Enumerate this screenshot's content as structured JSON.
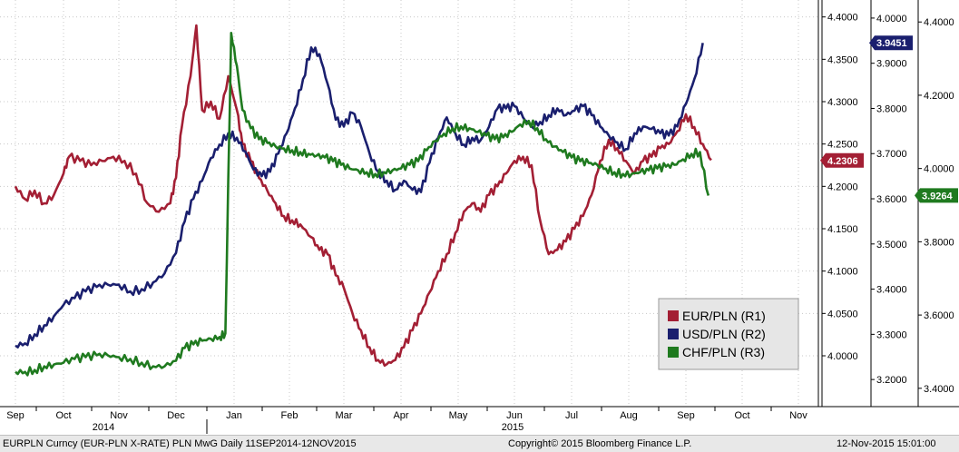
{
  "footer": {
    "left": "EURPLN Curncy (EUR-PLN X-RATE) PLN MwG  Daily 11SEP2014-12NOV2015",
    "center": "Copyright© 2015 Bloomberg Finance L.P.",
    "right": "12-Nov-2015 15:01:00"
  },
  "colors": {
    "eur": "#a31f34",
    "usd": "#1a1f6e",
    "chf": "#1f7a1f",
    "grid": "#c8c8c8",
    "legend_bg": "#e6e6e6"
  },
  "chart_data": {
    "type": "line",
    "x_months": [
      "Sep",
      "Oct",
      "Nov",
      "Dec",
      "Jan",
      "Feb",
      "Mar",
      "Apr",
      "May",
      "Jun",
      "Jul",
      "Aug",
      "Sep",
      "Oct",
      "Nov"
    ],
    "x_years": [
      "2014",
      "2015"
    ],
    "axes": {
      "R1": {
        "min": 3.94,
        "max": 4.42,
        "ticks": [
          "4.0000",
          "4.0500",
          "4.1000",
          "4.1500",
          "4.2000",
          "4.2500",
          "4.3000",
          "4.3500",
          "4.4000"
        ]
      },
      "R2": {
        "min": 3.14,
        "max": 4.04,
        "ticks": [
          "3.2000",
          "3.3000",
          "3.4000",
          "3.5000",
          "3.6000",
          "3.7000",
          "3.8000",
          "3.9000",
          "4.0000"
        ]
      },
      "R3": {
        "min": 3.35,
        "max": 4.46,
        "ticks": [
          "3.4000",
          "3.6000",
          "3.8000",
          "4.0000",
          "4.2000",
          "4.4000"
        ]
      }
    },
    "last_values": {
      "EUR": "4.2306",
      "USD": "3.9451",
      "CHF": "3.9264"
    },
    "legend": [
      "EUR/PLN (R1)",
      "USD/PLN (R2)",
      "CHF/PLN (R3)"
    ],
    "legend_position": "bottom-right",
    "series": [
      {
        "name": "EUR/PLN (R1)",
        "axis": "R1",
        "points": [
          [
            0,
            4.2
          ],
          [
            0.2,
            4.185
          ],
          [
            0.4,
            4.195
          ],
          [
            0.6,
            4.18
          ],
          [
            0.8,
            4.19
          ],
          [
            1.0,
            4.215
          ],
          [
            1.1,
            4.235
          ],
          [
            1.3,
            4.23
          ],
          [
            1.5,
            4.225
          ],
          [
            1.7,
            4.23
          ],
          [
            1.9,
            4.235
          ],
          [
            2.1,
            4.23
          ],
          [
            2.3,
            4.215
          ],
          [
            2.5,
            4.18
          ],
          [
            2.7,
            4.17
          ],
          [
            2.9,
            4.18
          ],
          [
            3.0,
            4.21
          ],
          [
            3.1,
            4.27
          ],
          [
            3.25,
            4.33
          ],
          [
            3.35,
            4.39
          ],
          [
            3.45,
            4.29
          ],
          [
            3.6,
            4.3
          ],
          [
            3.75,
            4.28
          ],
          [
            3.9,
            4.33
          ],
          [
            4.05,
            4.29
          ],
          [
            4.15,
            4.25
          ],
          [
            4.3,
            4.23
          ],
          [
            4.45,
            4.21
          ],
          [
            4.6,
            4.195
          ],
          [
            4.75,
            4.18
          ],
          [
            4.9,
            4.165
          ],
          [
            5.05,
            4.16
          ],
          [
            5.2,
            4.155
          ],
          [
            5.4,
            4.14
          ],
          [
            5.55,
            4.125
          ],
          [
            5.7,
            4.12
          ],
          [
            5.85,
            4.095
          ],
          [
            6.0,
            4.08
          ],
          [
            6.15,
            4.05
          ],
          [
            6.3,
            4.03
          ],
          [
            6.45,
            4.01
          ],
          [
            6.6,
            3.995
          ],
          [
            6.75,
            3.99
          ],
          [
            6.9,
            3.995
          ],
          [
            7.05,
            4.01
          ],
          [
            7.2,
            4.03
          ],
          [
            7.35,
            4.05
          ],
          [
            7.5,
            4.075
          ],
          [
            7.65,
            4.1
          ],
          [
            7.8,
            4.12
          ],
          [
            7.95,
            4.145
          ],
          [
            8.1,
            4.17
          ],
          [
            8.25,
            4.18
          ],
          [
            8.4,
            4.17
          ],
          [
            8.55,
            4.19
          ],
          [
            8.7,
            4.2
          ],
          [
            8.85,
            4.215
          ],
          [
            9.0,
            4.23
          ],
          [
            9.15,
            4.235
          ],
          [
            9.3,
            4.225
          ],
          [
            9.45,
            4.16
          ],
          [
            9.6,
            4.12
          ],
          [
            9.75,
            4.125
          ],
          [
            9.9,
            4.135
          ],
          [
            10.05,
            4.15
          ],
          [
            10.2,
            4.165
          ],
          [
            10.35,
            4.19
          ],
          [
            10.5,
            4.23
          ],
          [
            10.65,
            4.255
          ],
          [
            10.8,
            4.245
          ],
          [
            10.95,
            4.23
          ],
          [
            11.1,
            4.215
          ],
          [
            11.25,
            4.23
          ],
          [
            11.4,
            4.235
          ],
          [
            11.55,
            4.245
          ],
          [
            11.7,
            4.25
          ],
          [
            11.85,
            4.265
          ],
          [
            12.0,
            4.285
          ],
          [
            12.15,
            4.27
          ],
          [
            12.3,
            4.25
          ],
          [
            12.45,
            4.231
          ]
        ]
      },
      {
        "name": "USD/PLN (R2)",
        "axis": "R2",
        "points": [
          [
            0,
            3.275
          ],
          [
            0.2,
            3.28
          ],
          [
            0.4,
            3.3
          ],
          [
            0.6,
            3.32
          ],
          [
            0.8,
            3.34
          ],
          [
            1.0,
            3.365
          ],
          [
            1.2,
            3.38
          ],
          [
            1.4,
            3.395
          ],
          [
            1.6,
            3.405
          ],
          [
            1.8,
            3.41
          ],
          [
            2.0,
            3.41
          ],
          [
            2.2,
            3.395
          ],
          [
            2.4,
            3.4
          ],
          [
            2.6,
            3.415
          ],
          [
            2.8,
            3.435
          ],
          [
            3.0,
            3.48
          ],
          [
            3.15,
            3.55
          ],
          [
            3.3,
            3.6
          ],
          [
            3.45,
            3.64
          ],
          [
            3.6,
            3.69
          ],
          [
            3.75,
            3.72
          ],
          [
            3.9,
            3.745
          ],
          [
            4.05,
            3.735
          ],
          [
            4.2,
            3.705
          ],
          [
            4.35,
            3.665
          ],
          [
            4.5,
            3.65
          ],
          [
            4.65,
            3.66
          ],
          [
            4.8,
            3.7
          ],
          [
            4.95,
            3.745
          ],
          [
            5.1,
            3.8
          ],
          [
            5.25,
            3.865
          ],
          [
            5.4,
            3.935
          ],
          [
            5.55,
            3.92
          ],
          [
            5.7,
            3.855
          ],
          [
            5.85,
            3.775
          ],
          [
            6.0,
            3.76
          ],
          [
            6.15,
            3.79
          ],
          [
            6.3,
            3.76
          ],
          [
            6.45,
            3.7
          ],
          [
            6.6,
            3.66
          ],
          [
            6.75,
            3.64
          ],
          [
            6.9,
            3.62
          ],
          [
            7.05,
            3.64
          ],
          [
            7.2,
            3.62
          ],
          [
            7.35,
            3.615
          ],
          [
            7.5,
            3.68
          ],
          [
            7.65,
            3.735
          ],
          [
            7.8,
            3.78
          ],
          [
            7.95,
            3.745
          ],
          [
            8.1,
            3.72
          ],
          [
            8.25,
            3.735
          ],
          [
            8.4,
            3.73
          ],
          [
            8.55,
            3.76
          ],
          [
            8.7,
            3.8
          ],
          [
            8.85,
            3.8
          ],
          [
            9.0,
            3.805
          ],
          [
            9.15,
            3.78
          ],
          [
            9.3,
            3.76
          ],
          [
            9.45,
            3.77
          ],
          [
            9.6,
            3.785
          ],
          [
            9.75,
            3.8
          ],
          [
            9.9,
            3.785
          ],
          [
            10.05,
            3.795
          ],
          [
            10.2,
            3.805
          ],
          [
            10.35,
            3.785
          ],
          [
            10.5,
            3.76
          ],
          [
            10.65,
            3.74
          ],
          [
            10.8,
            3.725
          ],
          [
            10.95,
            3.71
          ],
          [
            11.1,
            3.745
          ],
          [
            11.25,
            3.76
          ],
          [
            11.4,
            3.755
          ],
          [
            11.55,
            3.745
          ],
          [
            11.7,
            3.74
          ],
          [
            11.85,
            3.76
          ],
          [
            12.0,
            3.81
          ],
          [
            12.15,
            3.865
          ],
          [
            12.3,
            3.945
          ]
        ]
      },
      {
        "name": "CHF/PLN (R3)",
        "axis": "R3",
        "points": [
          [
            0,
            3.445
          ],
          [
            0.2,
            3.445
          ],
          [
            0.4,
            3.45
          ],
          [
            0.6,
            3.46
          ],
          [
            0.8,
            3.465
          ],
          [
            1.0,
            3.47
          ],
          [
            1.2,
            3.48
          ],
          [
            1.4,
            3.485
          ],
          [
            1.6,
            3.49
          ],
          [
            1.8,
            3.49
          ],
          [
            2.0,
            3.485
          ],
          [
            2.2,
            3.48
          ],
          [
            2.4,
            3.47
          ],
          [
            2.6,
            3.46
          ],
          [
            2.8,
            3.46
          ],
          [
            3.0,
            3.475
          ],
          [
            3.15,
            3.51
          ],
          [
            3.3,
            3.52
          ],
          [
            3.45,
            3.53
          ],
          [
            3.6,
            3.535
          ],
          [
            3.75,
            3.54
          ],
          [
            3.85,
            3.55
          ],
          [
            3.95,
            4.37
          ],
          [
            4.05,
            4.28
          ],
          [
            4.15,
            4.16
          ],
          [
            4.3,
            4.11
          ],
          [
            4.45,
            4.08
          ],
          [
            4.6,
            4.07
          ],
          [
            4.75,
            4.06
          ],
          [
            4.9,
            4.055
          ],
          [
            5.05,
            4.05
          ],
          [
            5.2,
            4.045
          ],
          [
            5.35,
            4.04
          ],
          [
            5.5,
            4.035
          ],
          [
            5.65,
            4.03
          ],
          [
            5.8,
            4.02
          ],
          [
            5.95,
            4.01
          ],
          [
            6.1,
            4.0
          ],
          [
            6.25,
            3.995
          ],
          [
            6.4,
            3.99
          ],
          [
            6.55,
            3.985
          ],
          [
            6.7,
            3.99
          ],
          [
            6.85,
            3.995
          ],
          [
            7.0,
            4.0
          ],
          [
            7.15,
            4.01
          ],
          [
            7.3,
            4.02
          ],
          [
            7.45,
            4.05
          ],
          [
            7.6,
            4.075
          ],
          [
            7.75,
            4.095
          ],
          [
            7.9,
            4.11
          ],
          [
            8.05,
            4.115
          ],
          [
            8.2,
            4.11
          ],
          [
            8.35,
            4.1
          ],
          [
            8.5,
            4.09
          ],
          [
            8.65,
            4.08
          ],
          [
            8.8,
            4.085
          ],
          [
            8.95,
            4.1
          ],
          [
            9.1,
            4.12
          ],
          [
            9.25,
            4.13
          ],
          [
            9.4,
            4.11
          ],
          [
            9.55,
            4.08
          ],
          [
            9.7,
            4.06
          ],
          [
            9.85,
            4.045
          ],
          [
            10.0,
            4.03
          ],
          [
            10.15,
            4.02
          ],
          [
            10.3,
            4.015
          ],
          [
            10.45,
            4.01
          ],
          [
            10.6,
            4.0
          ],
          [
            10.75,
            3.99
          ],
          [
            10.9,
            3.985
          ],
          [
            11.05,
            3.985
          ],
          [
            11.2,
            3.99
          ],
          [
            11.35,
            3.995
          ],
          [
            11.5,
            4.0
          ],
          [
            11.65,
            4.005
          ],
          [
            11.8,
            4.01
          ],
          [
            11.95,
            4.025
          ],
          [
            12.1,
            4.04
          ],
          [
            12.25,
            4.045
          ],
          [
            12.4,
            3.926
          ]
        ]
      }
    ]
  }
}
